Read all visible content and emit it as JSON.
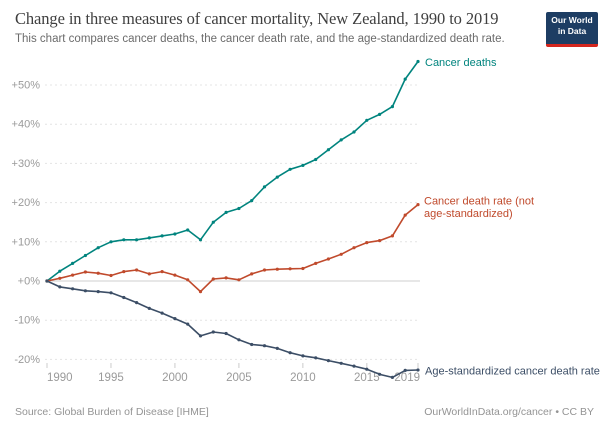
{
  "header": {
    "logo_line1": "Our World",
    "logo_line2": "in Data"
  },
  "chart_data": {
    "type": "line",
    "title": "Change in three measures of cancer mortality, New Zealand, 1990 to 2019",
    "subtitle": "This chart compares cancer deaths, the cancer death rate, and the age-standardized death rate.",
    "grid": "horizontal dashed gridlines, solid zero line",
    "legend_position": "labels at line ends (right side)",
    "y_unit": "% change since 1990",
    "ylim": [
      -27,
      60
    ],
    "xlim": [
      1990,
      2019
    ],
    "x_ticks": [
      1990,
      1995,
      2000,
      2005,
      2010,
      2015,
      2019
    ],
    "y_tick_values": [
      50,
      40,
      30,
      20,
      10,
      0,
      -10,
      -20
    ],
    "y_tick_labels": [
      "+50%",
      "+40%",
      "+30%",
      "+20%",
      "+10%",
      "+0%",
      "-10%",
      "-20%"
    ],
    "x": [
      1990,
      1991,
      1992,
      1993,
      1994,
      1995,
      1996,
      1997,
      1998,
      1999,
      2000,
      2001,
      2002,
      2003,
      2004,
      2005,
      2006,
      2007,
      2008,
      2009,
      2010,
      2011,
      2012,
      2013,
      2014,
      2015,
      2016,
      2017,
      2018,
      2019
    ],
    "series": [
      {
        "name": "Cancer deaths",
        "label_lines": [
          "Cancer deaths"
        ],
        "color": "#00847E",
        "values": [
          0,
          2.5,
          4.5,
          6.5,
          8.5,
          10,
          10.5,
          10.5,
          11,
          11.5,
          12,
          13,
          10.5,
          15,
          17.5,
          18.5,
          20.5,
          24,
          26.5,
          28.5,
          29.5,
          31,
          33.5,
          36,
          38,
          41,
          42.5,
          44.5,
          51.5,
          56
        ]
      },
      {
        "name": "Cancer death rate (not age-standardized)",
        "label_lines": [
          "Cancer death rate (not",
          "age-standardized)"
        ],
        "color": "#C04A2C",
        "values": [
          0,
          0.7,
          1.5,
          2.3,
          2,
          1.4,
          2.4,
          2.8,
          1.8,
          2.4,
          1.5,
          0.3,
          -2.7,
          0.5,
          0.8,
          0.3,
          1.8,
          2.8,
          3,
          3.1,
          3.2,
          4.5,
          5.6,
          6.8,
          8.5,
          9.8,
          10.3,
          11.5,
          16.8,
          19.5
        ]
      },
      {
        "name": "Age-standardized cancer death rate",
        "label_lines": [
          "Age-standardized cancer death rate"
        ],
        "color": "#3C4E66",
        "values": [
          0,
          -1.5,
          -2,
          -2.5,
          -2.7,
          -3,
          -4.2,
          -5.5,
          -7,
          -8.2,
          -9.6,
          -11,
          -14,
          -13,
          -13.4,
          -15,
          -16.2,
          -16.5,
          -17.2,
          -18.3,
          -19.1,
          -19.6,
          -20.3,
          -21,
          -21.7,
          -22.5,
          -23.8,
          -24.6,
          -22.8,
          -22.7
        ]
      }
    ]
  },
  "footer": {
    "source": "Source: Global Burden of Disease [IHME]",
    "credit": "OurWorldInData.org/cancer • CC BY"
  }
}
